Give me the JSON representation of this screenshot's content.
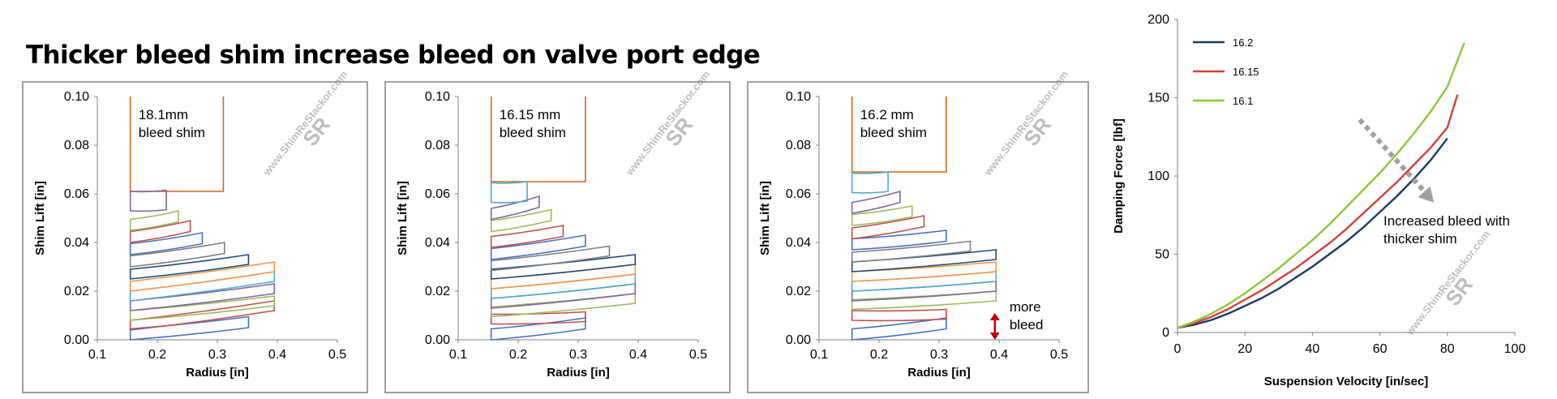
{
  "headline": "Thicker bleed shim increase bleed on valve port edge",
  "colors": {
    "frame": "#808080",
    "stack_palette": [
      "#4472c4",
      "#c0504d",
      "#9bbb59",
      "#8064a2",
      "#4bacc6",
      "#f79646",
      "#1f497d",
      "#7f7f7f"
    ],
    "bleed_shim": "#d2691e",
    "arrow": "#c00000",
    "trend_arrow": "#a0a0a0"
  },
  "watermark": {
    "text": "www.ShimReStackor.com",
    "logo": "SR"
  },
  "chart_data": [
    {
      "type": "area",
      "id": "stack-18.1",
      "annotation": [
        "18.1mm",
        "bleed shim"
      ],
      "xlabel": "Radius [in]",
      "ylabel": "Shim Lift [in]",
      "xlim": [
        0.1,
        0.5
      ],
      "ylim": [
        0,
        0.1
      ],
      "xticks": [
        "0.1",
        "0.2",
        "0.3",
        "0.4",
        "0.5"
      ],
      "yticks": [
        "0.00",
        "0.02",
        "0.04",
        "0.06",
        "0.08",
        "0.10"
      ],
      "clamp_radius": 0.155,
      "bleed_shim": {
        "outer_radius": 0.31,
        "lift_start": 0.061,
        "lift_end": 0.1
      },
      "shims": [
        {
          "outer_radius": 0.352,
          "lift_inner": 0.0,
          "lift_outer": 0.005,
          "height": 0.0045
        },
        {
          "outer_radius": 0.395,
          "lift_inner": 0.004,
          "lift_outer": 0.012,
          "height": 0.004
        },
        {
          "outer_radius": 0.395,
          "lift_inner": 0.008,
          "lift_outer": 0.014,
          "height": 0.004
        },
        {
          "outer_radius": 0.395,
          "lift_inner": 0.012,
          "lift_outer": 0.019,
          "height": 0.004
        },
        {
          "outer_radius": 0.395,
          "lift_inner": 0.016,
          "lift_outer": 0.024,
          "height": 0.004
        },
        {
          "outer_radius": 0.395,
          "lift_inner": 0.02,
          "lift_outer": 0.028,
          "height": 0.004
        },
        {
          "outer_radius": 0.352,
          "lift_inner": 0.025,
          "lift_outer": 0.031,
          "height": 0.004
        },
        {
          "outer_radius": 0.312,
          "lift_inner": 0.03,
          "lift_outer": 0.0355,
          "height": 0.0045
        },
        {
          "outer_radius": 0.275,
          "lift_inner": 0.035,
          "lift_outer": 0.0395,
          "height": 0.0045
        },
        {
          "outer_radius": 0.255,
          "lift_inner": 0.04,
          "lift_outer": 0.0445,
          "height": 0.0045
        },
        {
          "outer_radius": 0.235,
          "lift_inner": 0.045,
          "lift_outer": 0.0485,
          "height": 0.0045
        },
        {
          "outer_radius": 0.215,
          "lift_inner": 0.053,
          "lift_outer": 0.0535,
          "height": 0.008
        }
      ]
    },
    {
      "type": "area",
      "id": "stack-16.15",
      "annotation": [
        "16.15 mm",
        "bleed shim"
      ],
      "xlabel": "Radius [in]",
      "ylabel": "Shim Lift [in]",
      "xlim": [
        0.1,
        0.5
      ],
      "ylim": [
        0,
        0.1
      ],
      "xticks": [
        "0.1",
        "0.2",
        "0.3",
        "0.4",
        "0.5"
      ],
      "yticks": [
        "0.00",
        "0.02",
        "0.04",
        "0.06",
        "0.08",
        "0.10"
      ],
      "clamp_radius": 0.155,
      "bleed_shim": {
        "outer_radius": 0.312,
        "lift_start": 0.065,
        "lift_end": 0.1
      },
      "shims": [
        {
          "outer_radius": 0.312,
          "lift_inner": 0.0,
          "lift_outer": 0.0045,
          "height": 0.0045
        },
        {
          "outer_radius": 0.312,
          "lift_inner": 0.0065,
          "lift_outer": 0.0075,
          "height": 0.004
        },
        {
          "outer_radius": 0.395,
          "lift_inner": 0.0095,
          "lift_outer": 0.015,
          "height": 0.004
        },
        {
          "outer_radius": 0.395,
          "lift_inner": 0.013,
          "lift_outer": 0.019,
          "height": 0.004
        },
        {
          "outer_radius": 0.395,
          "lift_inner": 0.017,
          "lift_outer": 0.023,
          "height": 0.004
        },
        {
          "outer_radius": 0.395,
          "lift_inner": 0.021,
          "lift_outer": 0.027,
          "height": 0.004
        },
        {
          "outer_radius": 0.395,
          "lift_inner": 0.025,
          "lift_outer": 0.031,
          "height": 0.004
        },
        {
          "outer_radius": 0.352,
          "lift_inner": 0.0285,
          "lift_outer": 0.0345,
          "height": 0.004
        },
        {
          "outer_radius": 0.312,
          "lift_inner": 0.033,
          "lift_outer": 0.0385,
          "height": 0.0045
        },
        {
          "outer_radius": 0.275,
          "lift_inner": 0.038,
          "lift_outer": 0.0425,
          "height": 0.0045
        },
        {
          "outer_radius": 0.255,
          "lift_inner": 0.0445,
          "lift_outer": 0.049,
          "height": 0.0045
        },
        {
          "outer_radius": 0.235,
          "lift_inner": 0.0495,
          "lift_outer": 0.0545,
          "height": 0.0045
        },
        {
          "outer_radius": 0.215,
          "lift_inner": 0.0565,
          "lift_outer": 0.057,
          "height": 0.008
        }
      ]
    },
    {
      "type": "area",
      "id": "stack-16.2",
      "annotation": [
        "16.2 mm",
        "bleed shim"
      ],
      "arrow_note": [
        "more",
        "bleed"
      ],
      "xlabel": "Radius [in]",
      "ylabel": "Shim Lift [in]",
      "xlim": [
        0.1,
        0.5
      ],
      "ylim": [
        0,
        0.1
      ],
      "xticks": [
        "0.1",
        "0.2",
        "0.3",
        "0.4",
        "0.5"
      ],
      "yticks": [
        "0.00",
        "0.02",
        "0.04",
        "0.06",
        "0.08",
        "0.10"
      ],
      "clamp_radius": 0.155,
      "bleed_shim": {
        "outer_radius": 0.312,
        "lift_start": 0.069,
        "lift_end": 0.1
      },
      "arrow_lift": [
        0.0,
        0.011
      ],
      "shims": [
        {
          "outer_radius": 0.312,
          "lift_inner": 0.0,
          "lift_outer": 0.0045,
          "height": 0.0045
        },
        {
          "outer_radius": 0.312,
          "lift_inner": 0.008,
          "lift_outer": 0.0085,
          "height": 0.004
        },
        {
          "outer_radius": 0.395,
          "lift_inner": 0.0125,
          "lift_outer": 0.016,
          "height": 0.004
        },
        {
          "outer_radius": 0.395,
          "lift_inner": 0.016,
          "lift_outer": 0.02,
          "height": 0.004
        },
        {
          "outer_radius": 0.395,
          "lift_inner": 0.02,
          "lift_outer": 0.024,
          "height": 0.004
        },
        {
          "outer_radius": 0.395,
          "lift_inner": 0.024,
          "lift_outer": 0.028,
          "height": 0.004
        },
        {
          "outer_radius": 0.395,
          "lift_inner": 0.028,
          "lift_outer": 0.033,
          "height": 0.004
        },
        {
          "outer_radius": 0.352,
          "lift_inner": 0.032,
          "lift_outer": 0.0365,
          "height": 0.004
        },
        {
          "outer_radius": 0.312,
          "lift_inner": 0.037,
          "lift_outer": 0.0405,
          "height": 0.0045
        },
        {
          "outer_radius": 0.275,
          "lift_inner": 0.0415,
          "lift_outer": 0.0465,
          "height": 0.0045
        },
        {
          "outer_radius": 0.255,
          "lift_inner": 0.047,
          "lift_outer": 0.0505,
          "height": 0.0045
        },
        {
          "outer_radius": 0.235,
          "lift_inner": 0.052,
          "lift_outer": 0.0565,
          "height": 0.0045
        },
        {
          "outer_radius": 0.215,
          "lift_inner": 0.0605,
          "lift_outer": 0.061,
          "height": 0.008
        }
      ]
    },
    {
      "type": "line",
      "id": "damping",
      "xlabel": "Suspension Velocity [in/sec]",
      "ylabel": "Damping Force [lbf]",
      "xlim": [
        0,
        100
      ],
      "ylim": [
        0,
        200
      ],
      "xticks": [
        "0",
        "20",
        "40",
        "60",
        "80",
        "100"
      ],
      "yticks": [
        "0",
        "50",
        "100",
        "150",
        "200"
      ],
      "annotation": [
        "Increased bleed with",
        "thicker shim"
      ],
      "trend_arrow": {
        "from": [
          54,
          136
        ],
        "to": [
          76,
          83
        ]
      },
      "series": [
        {
          "name": "16.2",
          "color": "#1f3864",
          "x": [
            0,
            5,
            10,
            15,
            20,
            25,
            30,
            35,
            40,
            45,
            50,
            55,
            60,
            65,
            70,
            75,
            80
          ],
          "y": [
            3,
            5,
            8,
            12,
            17,
            22,
            28,
            35,
            42,
            50,
            58,
            67,
            77,
            87,
            98,
            110,
            124
          ]
        },
        {
          "name": "16.15",
          "color": "#d2403c",
          "x": [
            0,
            5,
            10,
            15,
            20,
            25,
            30,
            35,
            40,
            45,
            50,
            55,
            60,
            65,
            70,
            75,
            80,
            83
          ],
          "y": [
            3,
            6,
            10,
            15,
            21,
            27,
            34,
            41,
            49,
            57,
            66,
            76,
            86,
            96,
            107,
            118,
            131,
            152
          ]
        },
        {
          "name": "16.1",
          "color": "#8dc63f",
          "x": [
            0,
            5,
            10,
            15,
            20,
            25,
            30,
            35,
            40,
            45,
            50,
            55,
            60,
            65,
            70,
            75,
            80,
            85
          ],
          "y": [
            3,
            7,
            12,
            18,
            25,
            33,
            41,
            50,
            59,
            69,
            80,
            91,
            102,
            114,
            127,
            141,
            157,
            185
          ]
        }
      ]
    }
  ]
}
